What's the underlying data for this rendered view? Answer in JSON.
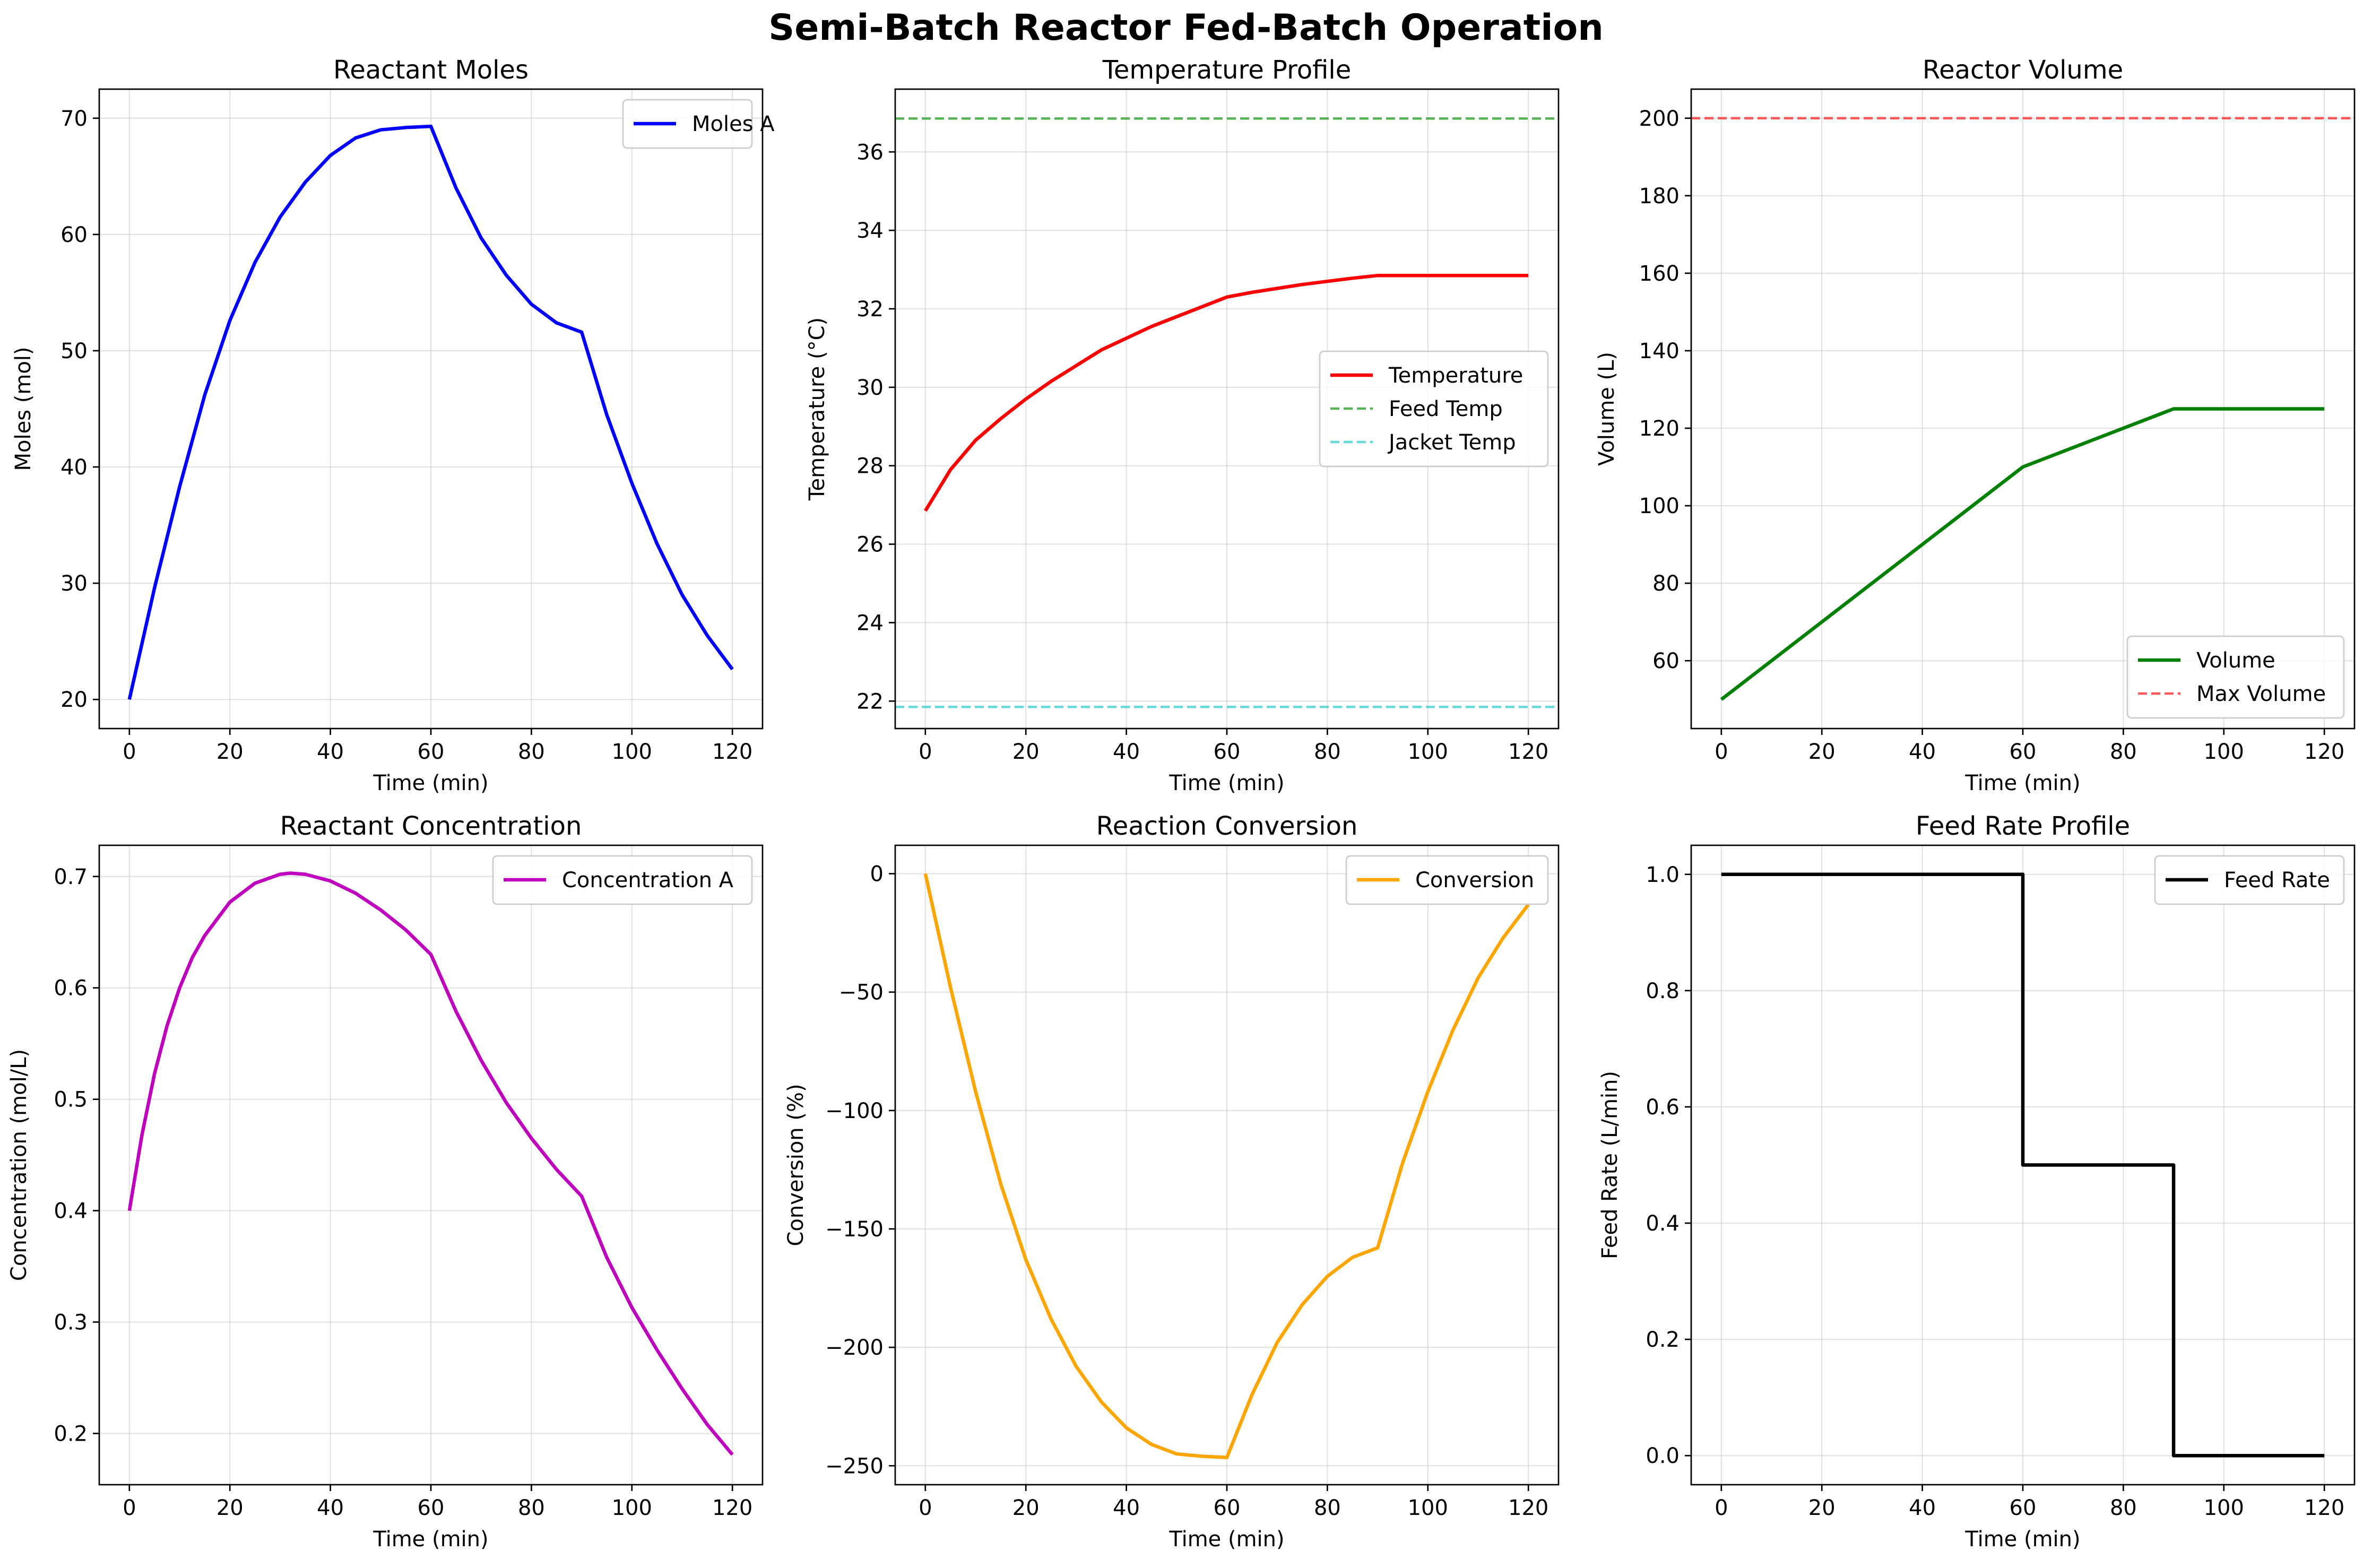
{
  "figure": {
    "title": "Semi-Batch Reactor Fed-Batch Operation"
  },
  "chart_data": [
    {
      "id": "moles",
      "type": "line",
      "title": "Reactant Moles",
      "xlabel": "Time (min)",
      "ylabel": "Moles (mol)",
      "xlim": [
        -6,
        126
      ],
      "ylim": [
        17.5,
        72.5
      ],
      "xticks": [
        0,
        20,
        40,
        60,
        80,
        100,
        120
      ],
      "yticks": [
        20,
        30,
        40,
        50,
        60,
        70
      ],
      "grid": true,
      "legend": "top-right",
      "series": [
        {
          "name": "Moles A",
          "color": "#0000ff",
          "dash": "solid",
          "x": [
            0,
            5,
            10,
            15,
            20,
            25,
            30,
            35,
            40,
            45,
            50,
            55,
            60,
            65,
            70,
            75,
            80,
            85,
            90,
            95,
            100,
            105,
            110,
            115,
            120
          ],
          "y": [
            20,
            29.6,
            38.3,
            46.2,
            52.6,
            57.6,
            61.5,
            64.5,
            66.8,
            68.3,
            69.0,
            69.2,
            69.3,
            64.0,
            59.7,
            56.5,
            54.0,
            52.4,
            51.6,
            44.5,
            38.6,
            33.4,
            29.0,
            25.5,
            22.6
          ]
        }
      ]
    },
    {
      "id": "temperature",
      "type": "line",
      "title": "Temperature Profile",
      "xlabel": "Time (min)",
      "ylabel": "Temperature (°C)",
      "xlim": [
        -6,
        126
      ],
      "ylim": [
        21.3,
        37.6
      ],
      "xticks": [
        0,
        20,
        40,
        60,
        80,
        100,
        120
      ],
      "yticks": [
        22,
        24,
        26,
        28,
        30,
        32,
        34,
        36
      ],
      "grid": true,
      "legend": "center-right",
      "series": [
        {
          "name": "Temperature",
          "color": "#ff0000",
          "dash": "solid",
          "x": [
            0,
            5,
            10,
            15,
            20,
            25,
            30,
            35,
            40,
            45,
            50,
            55,
            60,
            65,
            70,
            75,
            80,
            85,
            90,
            95,
            100,
            105,
            110,
            115,
            120
          ],
          "y": [
            26.85,
            27.9,
            28.65,
            29.2,
            29.7,
            30.15,
            30.55,
            30.95,
            31.25,
            31.55,
            31.8,
            32.05,
            32.3,
            32.42,
            32.52,
            32.62,
            32.7,
            32.78,
            32.85,
            32.85,
            32.85,
            32.85,
            32.85,
            32.85,
            32.85
          ]
        },
        {
          "name": "Feed Temp",
          "color": "#2ca02c",
          "dash": "dashed",
          "x": [
            -6,
            126
          ],
          "y": [
            36.85,
            36.85
          ]
        },
        {
          "name": "Jacket Temp",
          "color": "#40d0d0",
          "dash": "dashed",
          "x": [
            -6,
            126
          ],
          "y": [
            21.85,
            21.85
          ]
        }
      ]
    },
    {
      "id": "volume",
      "type": "line",
      "title": "Reactor Volume",
      "xlabel": "Time (min)",
      "ylabel": "Volume (L)",
      "xlim": [
        -6,
        126
      ],
      "ylim": [
        42.5,
        207.5
      ],
      "xticks": [
        0,
        20,
        40,
        60,
        80,
        100,
        120
      ],
      "yticks": [
        60,
        80,
        100,
        120,
        140,
        160,
        180,
        200
      ],
      "grid": true,
      "legend": "bottom-right",
      "series": [
        {
          "name": "Volume",
          "color": "#008000",
          "dash": "solid",
          "x": [
            0,
            60,
            90,
            120
          ],
          "y": [
            50,
            110,
            125,
            125
          ]
        },
        {
          "name": "Max Volume",
          "color": "#ff3030",
          "dash": "dashed",
          "x": [
            -6,
            126
          ],
          "y": [
            200,
            200
          ]
        }
      ]
    },
    {
      "id": "concentration",
      "type": "line",
      "title": "Reactant Concentration",
      "xlabel": "Time (min)",
      "ylabel": "Concentration (mol/L)",
      "xlim": [
        -6,
        126
      ],
      "ylim": [
        0.154,
        0.728
      ],
      "xticks": [
        0,
        20,
        40,
        60,
        80,
        100,
        120
      ],
      "yticks": [
        0.2,
        0.3,
        0.4,
        0.5,
        0.6,
        0.7
      ],
      "grid": true,
      "legend": "top-right",
      "series": [
        {
          "name": "Concentration A",
          "color": "#bf00bf",
          "dash": "solid",
          "x": [
            0,
            2.5,
            5,
            7.5,
            10,
            12.5,
            15,
            20,
            25,
            30,
            32,
            35,
            40,
            45,
            50,
            55,
            60,
            65,
            70,
            75,
            80,
            85,
            90,
            95,
            100,
            105,
            110,
            115,
            120
          ],
          "y": [
            0.4,
            0.468,
            0.523,
            0.566,
            0.6,
            0.627,
            0.647,
            0.677,
            0.694,
            0.702,
            0.703,
            0.702,
            0.696,
            0.685,
            0.67,
            0.652,
            0.63,
            0.579,
            0.535,
            0.497,
            0.465,
            0.437,
            0.413,
            0.358,
            0.313,
            0.275,
            0.24,
            0.208,
            0.181
          ]
        }
      ]
    },
    {
      "id": "conversion",
      "type": "line",
      "title": "Reaction Conversion",
      "xlabel": "Time (min)",
      "ylabel": "Conversion (%)",
      "xlim": [
        -6,
        126
      ],
      "ylim": [
        -258,
        12
      ],
      "xticks": [
        0,
        20,
        40,
        60,
        80,
        100,
        120
      ],
      "yticks": [
        -250,
        -200,
        -150,
        -100,
        -50,
        0
      ],
      "grid": true,
      "legend": "top-right",
      "series": [
        {
          "name": "Conversion",
          "color": "#ffa500",
          "dash": "solid",
          "x": [
            0,
            5,
            10,
            15,
            20,
            25,
            30,
            35,
            40,
            45,
            50,
            55,
            60,
            65,
            70,
            75,
            80,
            85,
            90,
            95,
            100,
            105,
            110,
            115,
            120
          ],
          "y": [
            0,
            -48,
            -92,
            -131,
            -163,
            -188,
            -208,
            -223,
            -234,
            -241,
            -245,
            -246,
            -246.5,
            -220,
            -198,
            -182,
            -170,
            -162,
            -158,
            -122,
            -92,
            -66,
            -44,
            -27,
            -13
          ]
        }
      ]
    },
    {
      "id": "feedrate",
      "type": "line",
      "title": "Feed Rate Profile",
      "xlabel": "Time (min)",
      "ylabel": "Feed Rate (L/min)",
      "xlim": [
        -6,
        126
      ],
      "ylim": [
        -0.05,
        1.05
      ],
      "xticks": [
        0,
        20,
        40,
        60,
        80,
        100,
        120
      ],
      "yticks": [
        0.0,
        0.2,
        0.4,
        0.6,
        0.8,
        1.0
      ],
      "grid": true,
      "legend": "top-right",
      "series": [
        {
          "name": "Feed Rate",
          "color": "#000000",
          "dash": "solid",
          "x": [
            0,
            60,
            60,
            90,
            90,
            120
          ],
          "y": [
            1,
            1,
            0.5,
            0.5,
            0,
            0
          ]
        }
      ]
    }
  ]
}
